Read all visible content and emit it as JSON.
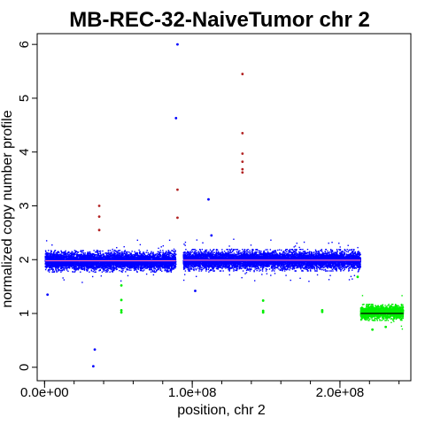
{
  "chart_data": {
    "type": "scatter",
    "title": "MB-REC-32-NaiveTumor chr 2",
    "xlabel": "position, chr 2",
    "ylabel": "normalized copy number profile",
    "xlim": [
      -5000000,
      248000000
    ],
    "ylim": [
      -0.25,
      6.2
    ],
    "x_ticks": [
      0,
      100000000,
      200000000
    ],
    "x_tick_labels": [
      "0.0e+00",
      "1.0e+08",
      "2.0e+08"
    ],
    "x_minor_ticks": [
      0,
      20000000,
      40000000,
      60000000,
      80000000,
      100000000,
      120000000,
      140000000,
      160000000,
      180000000,
      200000000,
      220000000,
      240000000
    ],
    "y_ticks": [
      0,
      1,
      2,
      3,
      4,
      5,
      6
    ],
    "y_tick_labels": [
      "0",
      "1",
      "2",
      "3",
      "4",
      "5",
      "6"
    ],
    "grid": false,
    "colors": {
      "normal": "#0000ff",
      "loss": "#00ee00",
      "gain": "#b22222",
      "segment": "#ff69b4",
      "segment_loss": "#000000"
    },
    "bands": [
      {
        "category": "normal",
        "x_start": 500000,
        "x_end": 89000000,
        "center": 1.97,
        "spread": 0.2,
        "extreme": 0.4
      },
      {
        "category": "normal",
        "x_start": 94000000,
        "x_end": 214000000,
        "center": 1.99,
        "spread": 0.2,
        "extreme": 0.4
      },
      {
        "category": "loss",
        "x_start": 214000000,
        "x_end": 243000000,
        "center": 1.02,
        "spread": 0.15,
        "extreme": 0.32
      }
    ],
    "segments": [
      {
        "category": "segment",
        "x_start": 500000,
        "x_end": 89000000,
        "y": 1.98
      },
      {
        "category": "segment",
        "x_start": 94000000,
        "x_end": 214000000,
        "y": 1.99
      },
      {
        "category": "segment_loss",
        "x_start": 214000000,
        "x_end": 243000000,
        "y": 1.0
      }
    ],
    "outliers": [
      {
        "x": 90000000,
        "y": 6.0,
        "category": "normal"
      },
      {
        "x": 89000000,
        "y": 4.63,
        "category": "normal"
      },
      {
        "x": 111000000,
        "y": 3.12,
        "category": "normal"
      },
      {
        "x": 113000000,
        "y": 2.45,
        "category": "normal"
      },
      {
        "x": 34000000,
        "y": 0.33,
        "category": "normal"
      },
      {
        "x": 33000000,
        "y": 0.02,
        "category": "normal"
      },
      {
        "x": 2000000,
        "y": 1.35,
        "category": "normal"
      },
      {
        "x": 102000000,
        "y": 1.42,
        "category": "normal"
      },
      {
        "x": 134000000,
        "y": 5.45,
        "category": "gain"
      },
      {
        "x": 134000000,
        "y": 4.35,
        "category": "gain"
      },
      {
        "x": 134000000,
        "y": 3.97,
        "category": "gain"
      },
      {
        "x": 134000000,
        "y": 3.82,
        "category": "gain"
      },
      {
        "x": 134000000,
        "y": 3.68,
        "category": "gain"
      },
      {
        "x": 134000000,
        "y": 3.62,
        "category": "gain"
      },
      {
        "x": 90000000,
        "y": 3.3,
        "category": "gain"
      },
      {
        "x": 90000000,
        "y": 2.78,
        "category": "gain"
      },
      {
        "x": 37000000,
        "y": 3.0,
        "category": "gain"
      },
      {
        "x": 37000000,
        "y": 2.8,
        "category": "gain"
      },
      {
        "x": 37000000,
        "y": 2.55,
        "category": "gain"
      },
      {
        "x": 52000000,
        "y": 1.52,
        "category": "loss"
      },
      {
        "x": 52000000,
        "y": 1.25,
        "category": "loss"
      },
      {
        "x": 52000000,
        "y": 1.06,
        "category": "loss"
      },
      {
        "x": 52000000,
        "y": 1.02,
        "category": "loss"
      },
      {
        "x": 148000000,
        "y": 1.24,
        "category": "loss"
      },
      {
        "x": 148000000,
        "y": 1.05,
        "category": "loss"
      },
      {
        "x": 148000000,
        "y": 1.02,
        "category": "loss"
      },
      {
        "x": 188000000,
        "y": 1.06,
        "category": "loss"
      },
      {
        "x": 188000000,
        "y": 1.03,
        "category": "loss"
      },
      {
        "x": 212000000,
        "y": 1.68,
        "category": "loss"
      },
      {
        "x": 222000000,
        "y": 0.7,
        "category": "loss"
      },
      {
        "x": 231000000,
        "y": 0.75,
        "category": "loss"
      }
    ]
  }
}
